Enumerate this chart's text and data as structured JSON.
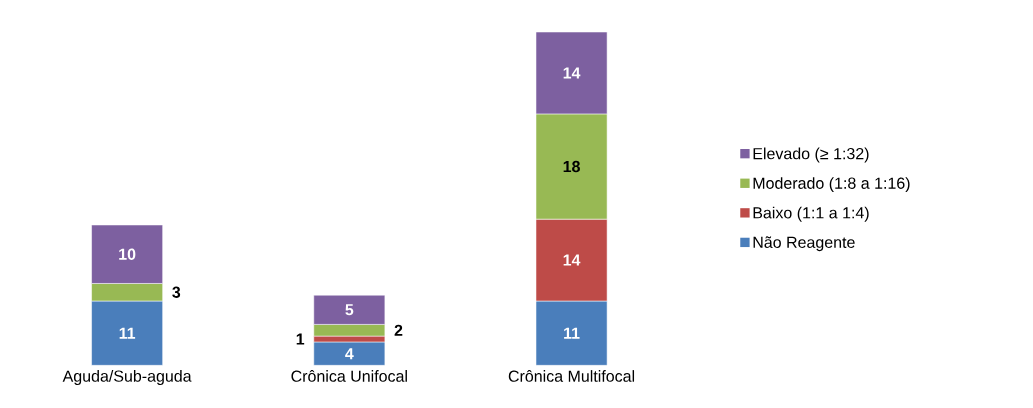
{
  "chart_data": {
    "type": "bar",
    "stacked": true,
    "legend": "right",
    "data_labels": true,
    "categories": [
      "Aguda/Sub-aguda",
      "Crônica Unifocal",
      "Crônica Multifocal"
    ],
    "series": [
      {
        "name": "Não Reagente",
        "color": "#4a7ebb",
        "values": [
          11,
          4,
          11
        ]
      },
      {
        "name": "Baixo (1:1 a 1:4)",
        "color": "#be4b48",
        "values": [
          null,
          1,
          14
        ]
      },
      {
        "name": "Moderado (1:8 a 1:16)",
        "color": "#98b954",
        "values": [
          3,
          2,
          18
        ]
      },
      {
        "name": "Elevado (≥ 1:32)",
        "color": "#7d60a0",
        "values": [
          10,
          5,
          14
        ]
      }
    ]
  }
}
